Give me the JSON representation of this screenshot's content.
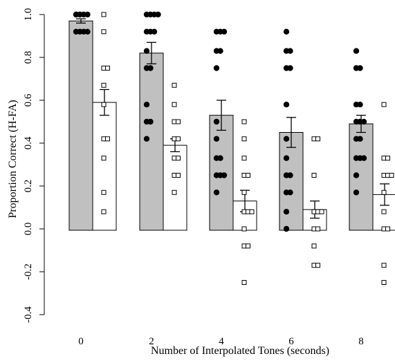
{
  "chart_data": {
    "type": "bar",
    "title": "",
    "xlabel": "Number of Interpolated Tones (seconds)",
    "ylabel": "Proportion Correct (H-FA)",
    "categories": [
      "0",
      "2",
      "4",
      "6",
      "8"
    ],
    "ylim": [
      -0.4,
      1.0
    ],
    "yticks": [
      "-0.4",
      "-0.2",
      "0.0",
      "0.2",
      "0.4",
      "0.6",
      "0.8",
      "1.0"
    ],
    "grid": false,
    "legend": "none",
    "series": [
      {
        "fill": "#c0c0c0",
        "point_marker": "filled-circle",
        "means": [
          0.97,
          0.82,
          0.53,
          0.45,
          0.49
        ],
        "errors": [
          0.01,
          0.05,
          0.07,
          0.07,
          0.04
        ],
        "points": [
          [
            1.0,
            1.0,
            1.0,
            1.0,
            1.0,
            1.0,
            0.92,
            0.92,
            0.92,
            0.92
          ],
          [
            1.0,
            1.0,
            1.0,
            1.0,
            0.92,
            0.92,
            0.92,
            0.83,
            0.75,
            0.75,
            0.58,
            0.5,
            0.5,
            0.42
          ],
          [
            0.92,
            0.92,
            0.92,
            0.83,
            0.83,
            0.75,
            0.5,
            0.42,
            0.33,
            0.33,
            0.25,
            0.25,
            0.25,
            0.17
          ],
          [
            0.92,
            0.83,
            0.83,
            0.75,
            0.75,
            0.58,
            0.42,
            0.33,
            0.25,
            0.25,
            0.17,
            0.17,
            0.08,
            0.0
          ],
          [
            0.83,
            0.75,
            0.75,
            0.58,
            0.58,
            0.5,
            0.5,
            0.5,
            0.42,
            0.42,
            0.33,
            0.33,
            0.33,
            0.25,
            0.17
          ]
        ]
      },
      {
        "fill": "#ffffff",
        "point_marker": "open-square",
        "means": [
          0.59,
          0.39,
          0.13,
          0.09,
          0.16
        ],
        "errors": [
          0.06,
          0.03,
          0.05,
          0.04,
          0.05
        ],
        "points": [
          [
            1.0,
            0.92,
            0.75,
            0.75,
            0.67,
            0.58,
            0.42,
            0.42,
            0.33,
            0.17,
            0.08
          ],
          [
            0.67,
            0.58,
            0.5,
            0.5,
            0.42,
            0.42,
            0.33,
            0.33,
            0.25,
            0.25,
            0.17
          ],
          [
            0.5,
            0.42,
            0.33,
            0.25,
            0.25,
            0.17,
            0.08,
            0.08,
            0.08,
            0.0,
            -0.08,
            -0.08,
            -0.25
          ],
          [
            0.42,
            0.42,
            0.25,
            0.08,
            0.08,
            0.08,
            0.0,
            0.0,
            -0.08,
            -0.17,
            -0.17
          ],
          [
            0.58,
            0.33,
            0.33,
            0.25,
            0.25,
            0.25,
            0.17,
            0.08,
            0.0,
            0.0,
            -0.17,
            -0.25
          ]
        ]
      }
    ]
  }
}
